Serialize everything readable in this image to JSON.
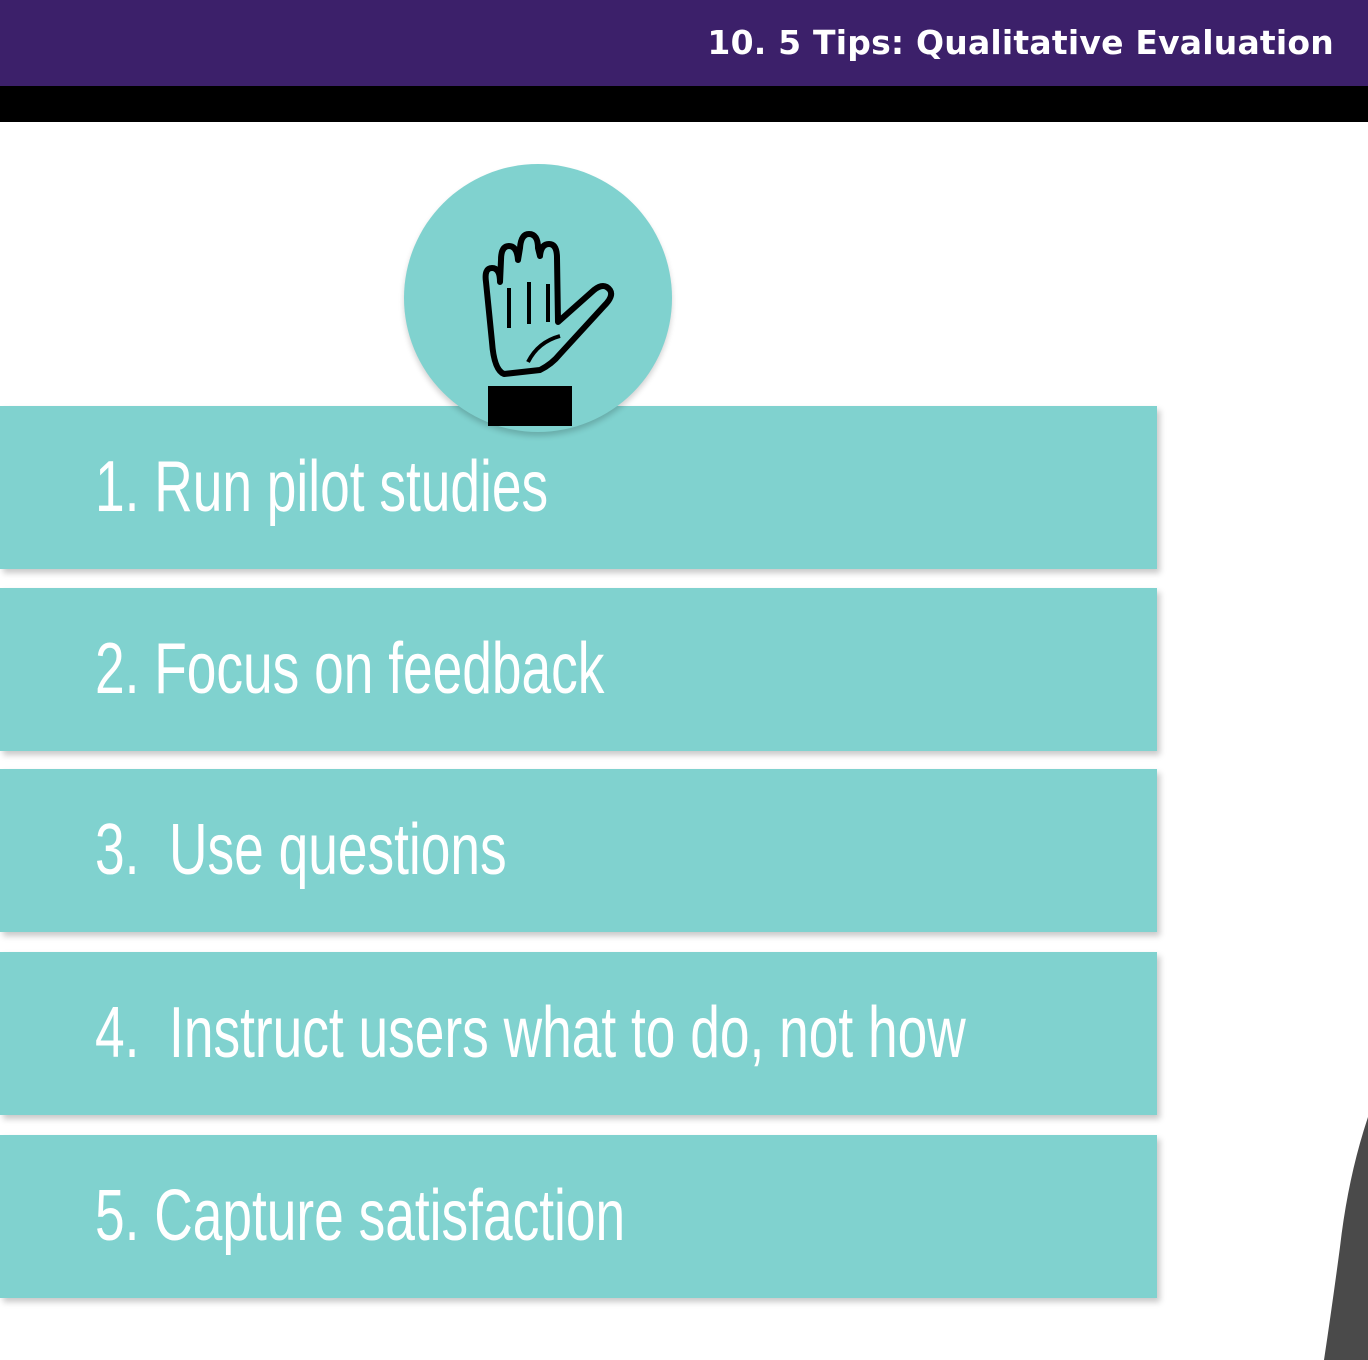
{
  "header": {
    "title": "10. 5 Tips: Qualitative Evaluation"
  },
  "colors": {
    "header_bg": "#3c206a",
    "accent_teal": "#80d2cf",
    "text_white": "#ffffff",
    "icon_black": "#000000"
  },
  "slide": {
    "icon": "raised-hand-icon",
    "tips": [
      {
        "label": "1. Run pilot studies"
      },
      {
        "label": "2. Focus on feedback"
      },
      {
        "label": "3.  Use questions"
      },
      {
        "label": "4.  Instruct users what to do, not how"
      },
      {
        "label": "5. Capture satisfaction"
      }
    ]
  }
}
